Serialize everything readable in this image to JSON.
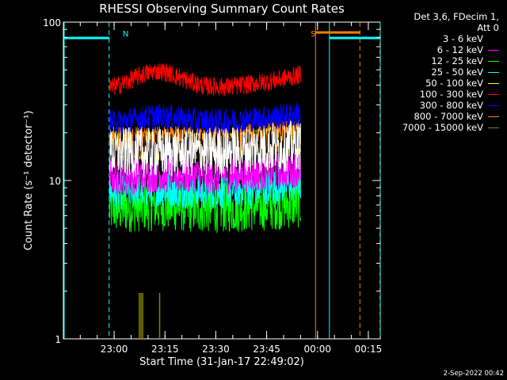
{
  "chart_data": {
    "type": "line",
    "title": "RHESSI Observing Summary Count Rates",
    "xlabel": "Start Time (31-Jan-17 22:49:02)",
    "ylabel": "Count Rate (s⁻¹ detector⁻¹)",
    "y_scale": "log",
    "ylim": [
      1,
      100
    ],
    "y_ticks": [
      "1",
      "10",
      "100"
    ],
    "x_unit": "minutes after 22:49:02",
    "xlim_min": [
      -4.0,
      89.5
    ],
    "x_ticks": [
      {
        "label": "23:00",
        "min": 10.98
      },
      {
        "label": "23:15",
        "min": 25.98
      },
      {
        "label": "23:30",
        "min": 40.98
      },
      {
        "label": "23:45",
        "min": 55.98
      },
      {
        "label": "00:00",
        "min": 70.98
      },
      {
        "label": "00:15",
        "min": 85.98
      }
    ],
    "data_span_min": [
      9.6,
      66.0
    ],
    "legend_header": [
      "Det 3,6, FDecim 1,",
      "Att 0"
    ],
    "series": [
      {
        "name": "3 - 6 keV",
        "color": "#ffffff",
        "base": 15,
        "spread": 0.16,
        "hump": 0.0,
        "rise": 0.05
      },
      {
        "name": "6 - 12 keV",
        "color": "#ff00ff",
        "base": 10.5,
        "spread": 0.12,
        "hump": 0.02,
        "rise": 0.06
      },
      {
        "name": "12 - 25 keV",
        "color": "#00ff00",
        "base": 6.6,
        "spread": 0.16,
        "hump": 0.02,
        "rise": 0.04
      },
      {
        "name": "25 - 50 keV",
        "color": "#00ffff",
        "base": 8.5,
        "spread": 0.12,
        "hump": 0.02,
        "rise": 0.06
      },
      {
        "name": "50 - 100 keV",
        "color": "#ffff00",
        "base": 16.5,
        "spread": 0.1,
        "hump": 0.0,
        "rise": 0.04
      },
      {
        "name": "100 - 300 keV",
        "color": "#ff0000",
        "base": 37,
        "spread": 0.06,
        "hump": 0.12,
        "rise": 0.1
      },
      {
        "name": "300 - 800 keV",
        "color": "#0000ff",
        "base": 23,
        "spread": 0.08,
        "hump": 0.04,
        "rise": 0.06
      },
      {
        "name": "800 - 7000 keV",
        "color": "#ff8000",
        "base": 17.5,
        "spread": 0.1,
        "hump": 0.0,
        "rise": 0.05
      },
      {
        "name": "7000 - 15000 keV",
        "color": "#808000",
        "base": 1,
        "spread": 0,
        "hump": 0,
        "rise": 0
      }
    ],
    "black_series": {
      "name": "3 - 6 keV",
      "base": 16,
      "spread": 0.1
    },
    "olive_spikes_min": [
      18.4,
      18.9,
      19.4,
      24.4
    ],
    "olive_spike_value": 1.95,
    "annotations": [
      {
        "text": "N",
        "color": "#00ffff",
        "x_min": 13.5
      },
      {
        "text": "S",
        "color": "#ff8000",
        "x_min": 69.0
      }
    ],
    "cyan_bars_min": [
      [
        -4.0,
        9.5
      ],
      [
        74.5,
        89.5
      ]
    ],
    "orange_bar_min": [
      70.4,
      83.5
    ],
    "cyan_solid_min": [
      -4.0,
      74.5
    ],
    "cyan_dashed_min": [
      9.5,
      89.5
    ],
    "orange_solid_min": 70.4,
    "orange_dashed_min": 83.5,
    "grid": false
  },
  "footer_date": "2-Sep-2022 00:42"
}
